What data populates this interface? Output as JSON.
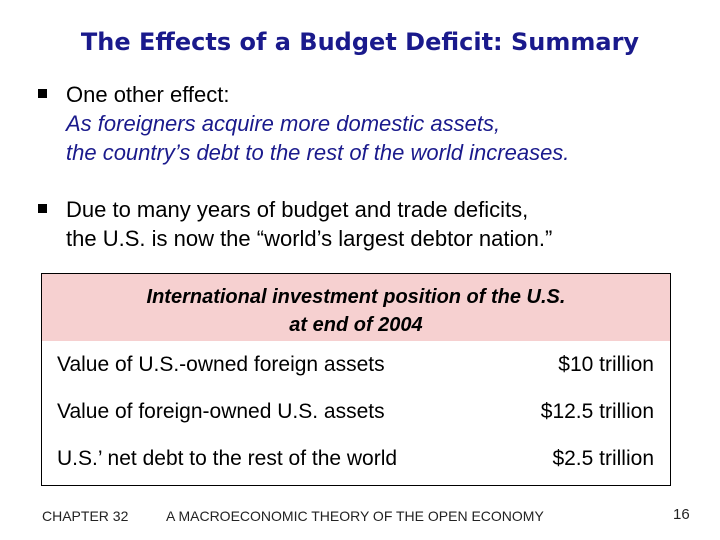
{
  "title": "The Effects of a Budget Deficit:  Summary",
  "bullets": [
    {
      "text": "One other effect:",
      "emphasis_lines": [
        "As foreigners acquire more domestic assets,",
        "the country’s debt to the rest of the world increases."
      ]
    },
    {
      "lines": [
        "Due to many years of budget and trade deficits,",
        "the U.S. is now the “world’s largest debtor nation.”"
      ]
    }
  ],
  "table": {
    "caption_lines": [
      "International investment position of the U.S.",
      "at end of 2004"
    ],
    "rows": [
      {
        "label": "Value of U.S.-owned foreign assets",
        "value": "$10 trillion"
      },
      {
        "label": "Value of foreign-owned U.S. assets",
        "value": "$12.5 trillion"
      },
      {
        "label": "U.S.’ net debt to the rest of the world",
        "value": "$2.5 trillion"
      }
    ]
  },
  "footer": {
    "chapter": "CHAPTER 32",
    "course": "A MACROECONOMIC THEORY OF THE OPEN ECONOMY",
    "page": "16"
  },
  "colors": {
    "title": "#1a1a8c",
    "emphasis": "#1a1a8c",
    "table_header_bg": "#f6d0d0"
  }
}
